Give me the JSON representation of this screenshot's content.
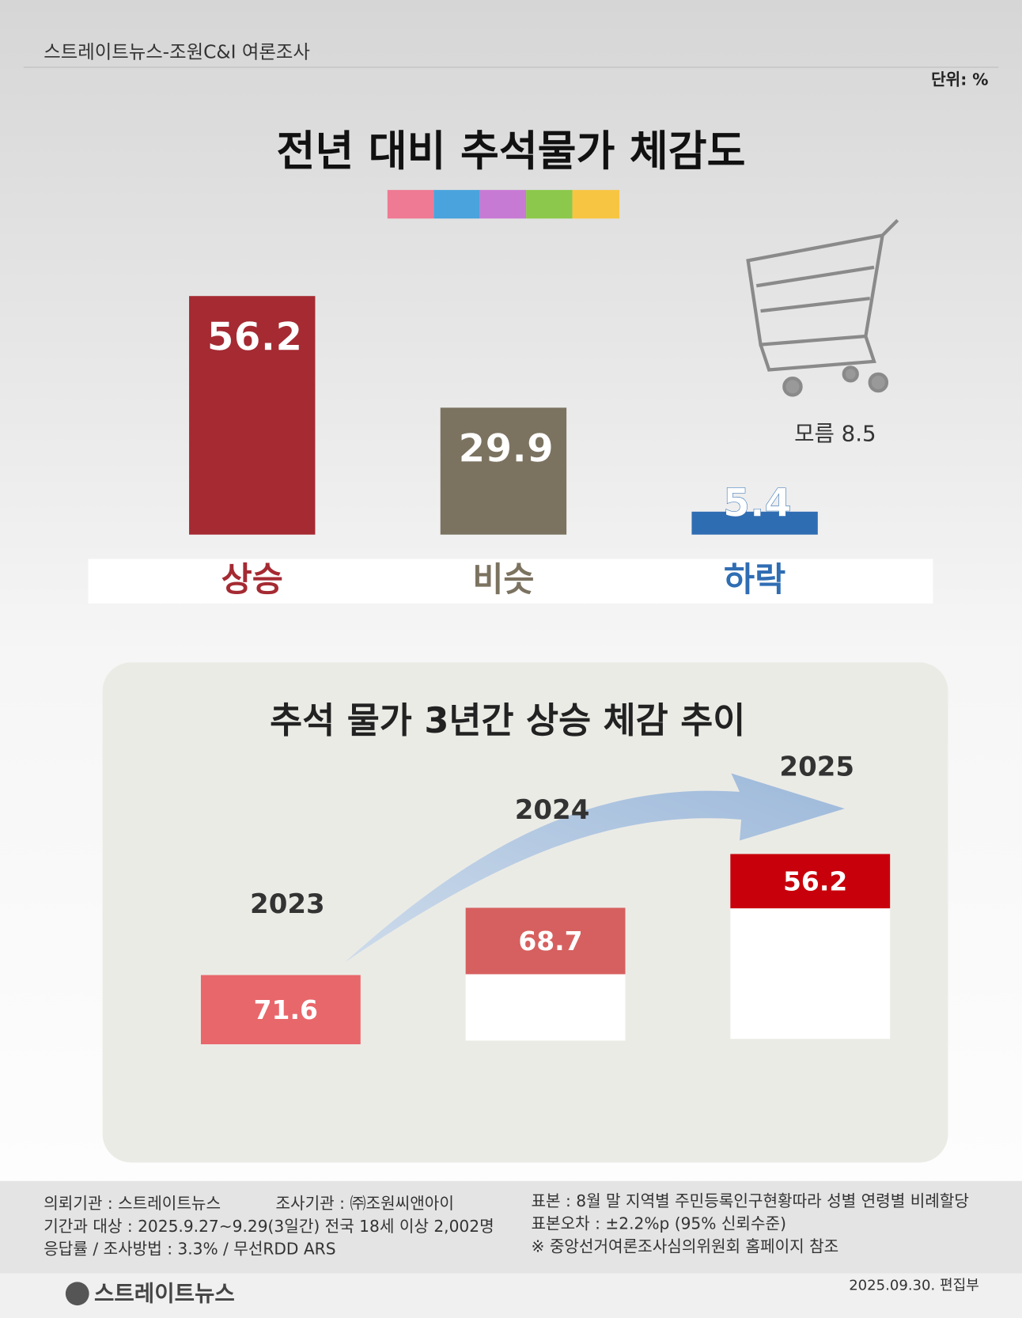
{
  "header": {
    "source": "스트레이트뉴스-조원C&I 여론조사",
    "unit": "단위: %"
  },
  "chart_data": [
    {
      "type": "bar",
      "title": "전년 대비 추석물가 체감도",
      "categories": [
        "상승",
        "비슷",
        "하락"
      ],
      "values": [
        56.2,
        29.9,
        5.4
      ],
      "colors": [
        "#a52a32",
        "#7b7260",
        "#2f6db3"
      ],
      "annotation": {
        "label": "모름",
        "value": 8.5
      }
    },
    {
      "type": "bar",
      "title": "추석 물가 3년간 상승 체감 추이",
      "categories": [
        "2023",
        "2024",
        "2025"
      ],
      "values": [
        71.6,
        68.7,
        56.2
      ],
      "colors": [
        "#e8676b",
        "#d6605f",
        "#c8000b"
      ]
    }
  ],
  "footer": {
    "left": [
      "의뢰기관 : 스트레이트뉴스",
      "기간과 대상 : 2025.9.27~9.29(3일간)   전국 18세 이상  2,002명",
      "응답률 / 조사방법 : 3.3% / 무선RDD ARS"
    ],
    "agency": "조사기관 : ㈜조원씨앤아이",
    "right": [
      "표본 : 8월 말 지역별 주민등록인구현황따라 성별 연령별 비례할당",
      "표본오차 : ±2.2%p (95% 신뢰수준)",
      "※ 중앙선거여론조사심의위원회 홈페이지 참조"
    ],
    "logo": "스트레이트뉴스",
    "date": "2025.09.30. 편집부"
  }
}
